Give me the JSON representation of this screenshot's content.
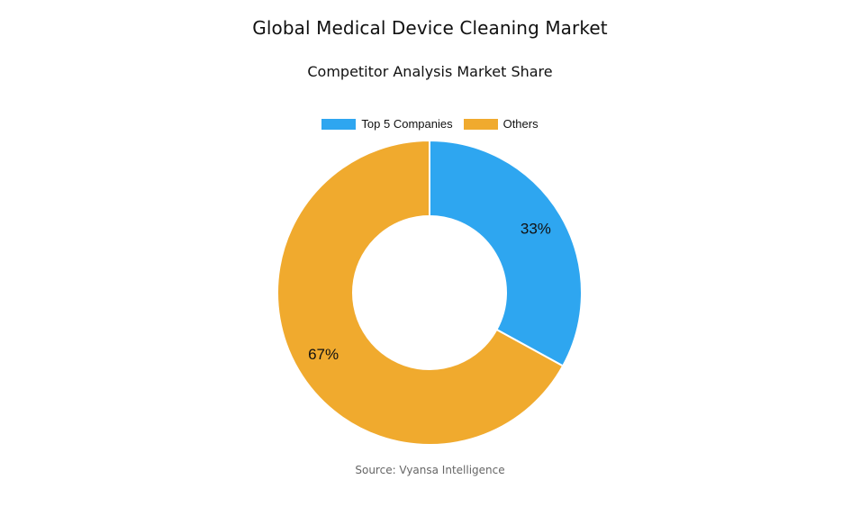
{
  "header": {
    "title": "Global Medical Device Cleaning Market",
    "subtitle": "Competitor Analysis Market Share"
  },
  "legend": {
    "position": "top-center",
    "items": [
      {
        "label": "Top 5 Companies",
        "color": "#2ea6f0"
      },
      {
        "label": "Others",
        "color": "#f0aa2e"
      }
    ]
  },
  "chart_data": {
    "type": "pie",
    "variant": "donut",
    "title": "Global Medical Device Cleaning Market",
    "subtitle": "Competitor Analysis Market Share",
    "categories": [
      "Top 5 Companies",
      "Others"
    ],
    "values": [
      33,
      67
    ],
    "value_labels": [
      "33%",
      "67%"
    ],
    "colors": [
      "#2ea6f0",
      "#f0aa2e"
    ]
  },
  "footer": {
    "source": "Source: Vyansa Intelligence"
  }
}
